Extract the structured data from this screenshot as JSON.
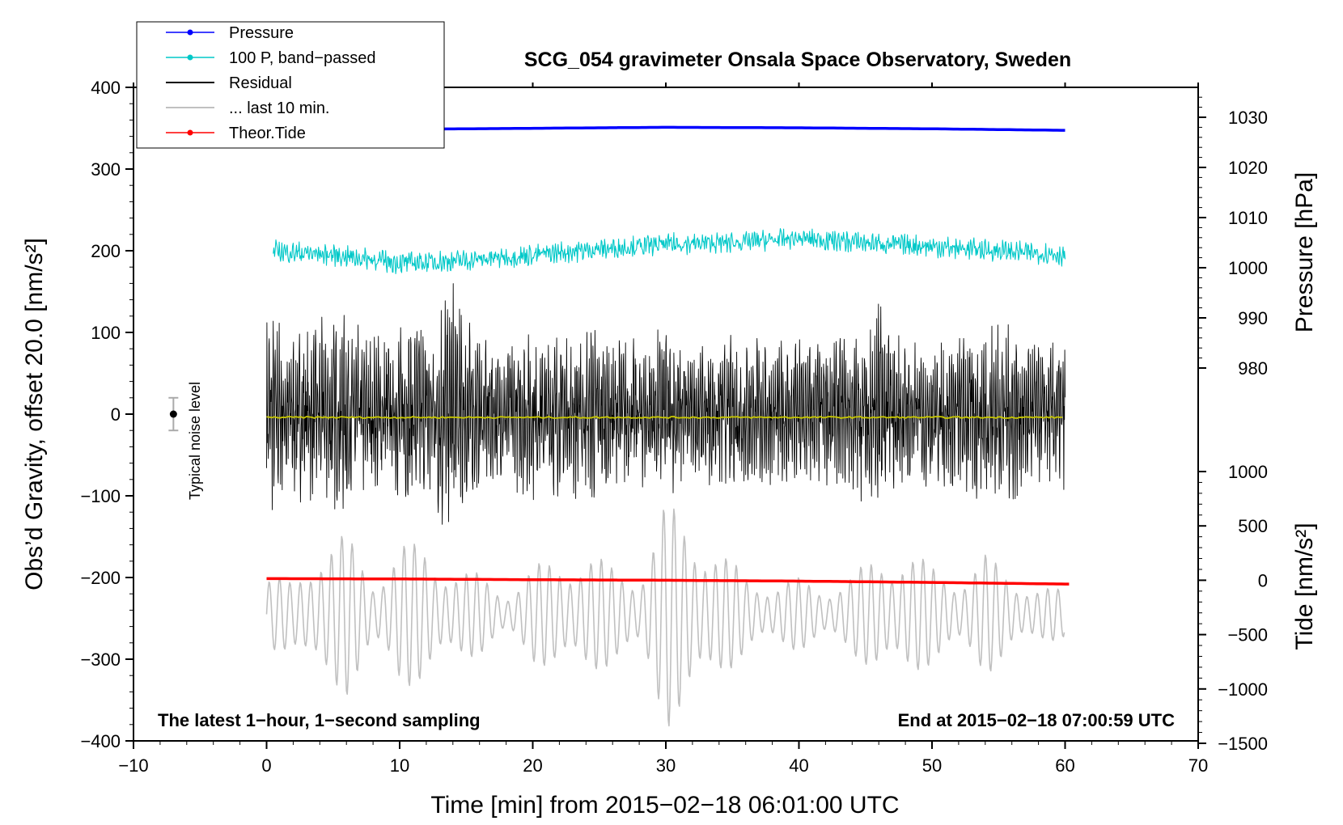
{
  "chart_data": {
    "type": "line",
    "title": "SCG_054 gravimeter Onsala Space Observatory, Sweden",
    "xlabel": "Time [min] from 2015−02−18 06:01:00 UTC",
    "ylabel_left": "Obs’d Gravity, offset 20.0 [nm/s²]",
    "ylabel_pressure": "Pressure [hPa]",
    "ylabel_tide": "Tide [nm/s²]",
    "xlim": [
      -10,
      70
    ],
    "ylim_left": [
      -400,
      400
    ],
    "x_ticks": [
      "−10",
      "0",
      "10",
      "20",
      "30",
      "40",
      "50",
      "60",
      "70"
    ],
    "y_ticks_left": [
      "400",
      "300",
      "200",
      "100",
      "0",
      "−100",
      "−200",
      "−300",
      "−400"
    ],
    "pressure_ticks": [
      "1030",
      "1020",
      "1010",
      "1000",
      "990",
      "980"
    ],
    "tide_ticks": [
      "1000",
      "500",
      "0",
      "−500",
      "−1000",
      "−1500"
    ],
    "note_left": "The latest 1−hour, 1−second sampling",
    "note_right": "End at 2015−02−18 07:00:59 UTC",
    "noise_label": "Typical noise level",
    "noise_bar": {
      "x": -7,
      "center": 0,
      "half_range": 20
    },
    "legend": [
      {
        "label": "Pressure",
        "color": "#0000ff",
        "marker": true
      },
      {
        "label": "100 P, band−passed",
        "color": "#00c8c8",
        "marker": true
      },
      {
        "label": "Residual",
        "color": "#000000",
        "marker": false
      },
      {
        "label": "... last 10 min.",
        "color": "#c0c0c0",
        "marker": false
      },
      {
        "label": "Theor.Tide",
        "color": "#ff0000",
        "marker": true
      }
    ],
    "series": [
      {
        "name": "Pressure",
        "axis": "pressure_hPa",
        "color": "#0000ff",
        "x": [
          0,
          10,
          20,
          30,
          40,
          50,
          60
        ],
        "values": [
          1027.5,
          1027.6,
          1027.8,
          1028.0,
          1027.9,
          1027.7,
          1027.4
        ]
      },
      {
        "name": "100 P, band-passed",
        "axis": "left_nm_s2",
        "color": "#00c8c8",
        "x": [
          0,
          5,
          10,
          15,
          20,
          25,
          30,
          35,
          40,
          45,
          50,
          55,
          60
        ],
        "values": [
          200,
          195,
          185,
          188,
          195,
          202,
          208,
          210,
          215,
          210,
          205,
          200,
          195
        ],
        "amplitude": 12
      },
      {
        "name": "Residual",
        "axis": "left_nm_s2",
        "color": "#000000",
        "x": [
          0,
          2,
          4,
          6,
          8,
          10,
          12,
          14,
          16,
          18,
          20,
          22,
          24,
          26,
          28,
          30,
          32,
          34,
          36,
          38,
          40,
          42,
          44,
          46,
          48,
          50,
          52,
          54,
          56,
          58,
          60
        ],
        "values": [
          0,
          0,
          0,
          0,
          0,
          0,
          0,
          0,
          0,
          0,
          0,
          0,
          0,
          0,
          0,
          0,
          0,
          0,
          0,
          0,
          0,
          0,
          0,
          0,
          0,
          0,
          0,
          0,
          0,
          0,
          0
        ],
        "envelope": [
          120,
          95,
          110,
          115,
          90,
          100,
          110,
          160,
          85,
          80,
          100,
          95,
          110,
          90,
          85,
          100,
          70,
          85,
          95,
          80,
          90,
          85,
          90,
          140,
          80,
          85,
          90,
          110,
          100,
          80,
          85
        ]
      },
      {
        "name": "... last 10 min.",
        "axis": "left_nm_s2",
        "color": "#c0c0c0",
        "x": [
          0,
          2,
          4,
          6,
          8,
          10,
          12,
          14,
          16,
          18,
          20,
          22,
          24,
          26,
          28,
          30,
          32,
          34,
          36,
          38,
          40,
          42,
          44,
          46,
          48,
          50,
          52,
          54,
          56,
          58,
          60
        ],
        "values": [
          -245,
          -245,
          -245,
          -245,
          -245,
          -245,
          -245,
          -245,
          -245,
          -245,
          -245,
          -245,
          -245,
          -245,
          -245,
          -245,
          -245,
          -245,
          -245,
          -245,
          -245,
          -245,
          -245,
          -245,
          -245,
          -245,
          -245,
          -245,
          -245,
          -245,
          -245
        ],
        "envelope": [
          50,
          40,
          95,
          100,
          50,
          90,
          85,
          60,
          50,
          30,
          60,
          70,
          80,
          60,
          55,
          140,
          120,
          80,
          50,
          40,
          45,
          35,
          50,
          75,
          85,
          60,
          50,
          75,
          50,
          35,
          30
        ]
      },
      {
        "name": "Theor.Tide",
        "axis": "tide_nm_s2",
        "color": "#ff0000",
        "x": [
          0,
          10,
          20,
          30,
          40,
          50,
          60
        ],
        "values": [
          15,
          12,
          5,
          0,
          -8,
          -20,
          -35
        ]
      },
      {
        "name": "Mean",
        "axis": "left_nm_s2",
        "color": "#c8c800",
        "x": [
          0,
          60
        ],
        "values": [
          -4,
          -4
        ]
      }
    ]
  }
}
